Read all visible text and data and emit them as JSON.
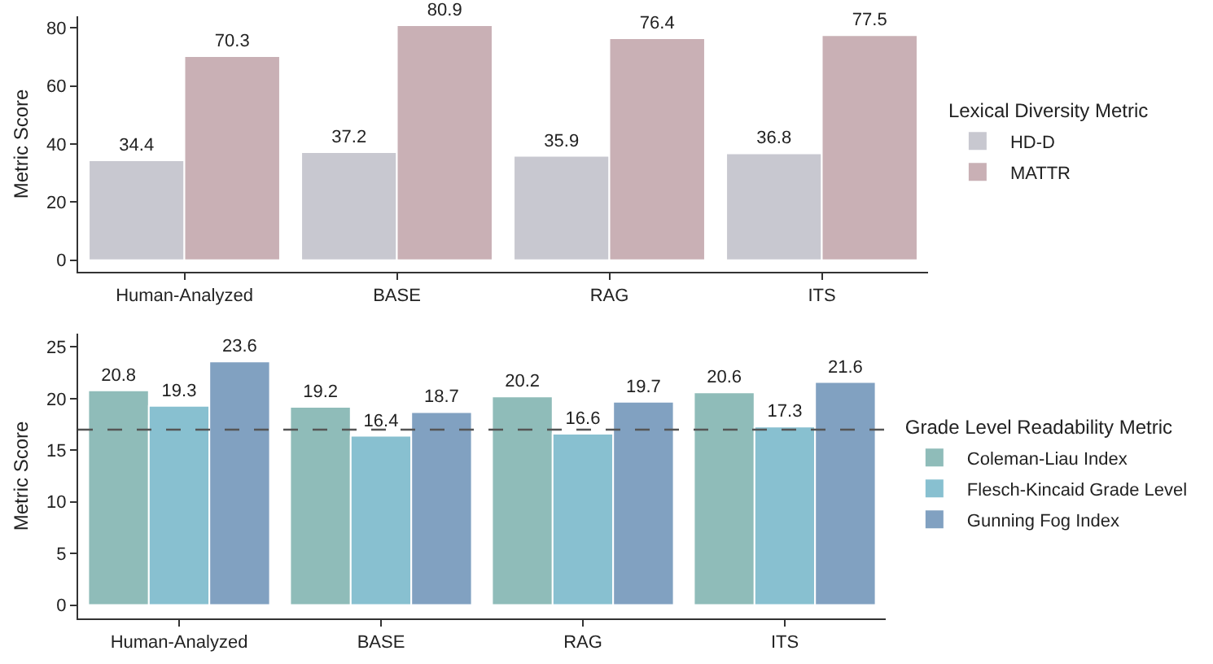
{
  "chart_data": [
    {
      "type": "bar",
      "ylabel": "Metric Score",
      "legend_title": "Lexical Diversity Metric",
      "categories": [
        "Human-Analyzed",
        "BASE",
        "RAG",
        "ITS"
      ],
      "series": [
        {
          "name": "HD-D",
          "color": "#c8c8d0",
          "values": [
            34.4,
            37.2,
            35.9,
            36.8
          ]
        },
        {
          "name": "MATTR",
          "color": "#c9b0b5",
          "values": [
            70.3,
            80.9,
            76.4,
            77.5
          ]
        }
      ],
      "ylim": [
        -4,
        84
      ],
      "yticks": [
        0,
        20,
        40,
        60,
        80
      ],
      "data_labels": true,
      "legend": "right",
      "grid": false
    },
    {
      "type": "bar",
      "ylabel": "Metric Score",
      "legend_title": "Grade Level Readability Metric",
      "categories": [
        "Human-Analyzed",
        "BASE",
        "RAG",
        "ITS"
      ],
      "series": [
        {
          "name": "Coleman-Liau Index",
          "color": "#8fbcb9",
          "values": [
            20.8,
            19.2,
            20.2,
            20.6
          ]
        },
        {
          "name": "Flesch-Kincaid Grade Level",
          "color": "#88c0d0",
          "values": [
            19.3,
            16.4,
            16.6,
            17.3
          ]
        },
        {
          "name": "Gunning Fog Index",
          "color": "#81a1c1",
          "values": [
            23.6,
            18.7,
            19.7,
            21.6
          ]
        }
      ],
      "ylim": [
        -1.3,
        26.3
      ],
      "yticks": [
        0,
        5,
        10,
        15,
        20,
        25
      ],
      "data_labels": true,
      "legend": "right",
      "grid": false,
      "ref_lines": [
        {
          "axis": "y",
          "value": 17,
          "color": "#555555",
          "line_style": "dashed"
        }
      ]
    }
  ]
}
